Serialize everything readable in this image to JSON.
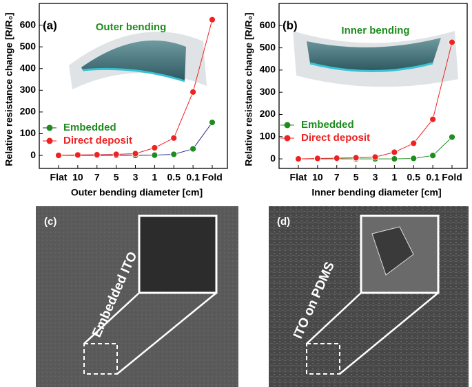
{
  "chart_data": [
    {
      "type": "line",
      "panel": "(a)",
      "annotation": "Outer bending",
      "xlabel": "Outer bending diameter [cm]",
      "ylabel": "Relative resistance change [R/R₀]",
      "categories": [
        "Flat",
        "10",
        "7",
        "5",
        "3",
        "1",
        "0.5",
        "0.1",
        "Fold"
      ],
      "ylim": [
        -60,
        700
      ],
      "yticks": [
        0,
        100,
        200,
        300,
        400,
        500,
        600
      ],
      "series": [
        {
          "name": "Embedded",
          "color": "#1e8c1e",
          "line_color": "#2b2b8c",
          "values": [
            0,
            0,
            0,
            0,
            0,
            1,
            5,
            30,
            152
          ]
        },
        {
          "name": "Direct deposit",
          "color": "#ee2222",
          "line_color": "#ee2222",
          "values": [
            0,
            2,
            3,
            5,
            8,
            35,
            80,
            292,
            625
          ]
        }
      ]
    },
    {
      "type": "line",
      "panel": "(b)",
      "annotation": "Inner bending",
      "xlabel": "Inner bending diameter [cm]",
      "ylabel": "Relative resistance change [R/R₀]",
      "categories": [
        "Flat",
        "10",
        "7",
        "5",
        "3",
        "1",
        "0.5",
        "0.1",
        "Fold"
      ],
      "ylim": [
        -43,
        700
      ],
      "yticks": [
        0,
        100,
        200,
        300,
        400,
        500,
        600
      ],
      "series": [
        {
          "name": "Embedded",
          "color": "#1e8c1e",
          "line_color": "#1e8c1e",
          "values": [
            0,
            0,
            0,
            0,
            0,
            0,
            2,
            15,
            98
          ]
        },
        {
          "name": "Direct deposit",
          "color": "#ee2222",
          "line_color": "#ee2222",
          "values": [
            0,
            2,
            3,
            5,
            8,
            30,
            70,
            178,
            525
          ]
        }
      ]
    }
  ],
  "panels": [
    {
      "label": "(c)",
      "caption": "Embedded ITO"
    },
    {
      "label": "(d)",
      "caption": "ITO on PDMS"
    }
  ]
}
